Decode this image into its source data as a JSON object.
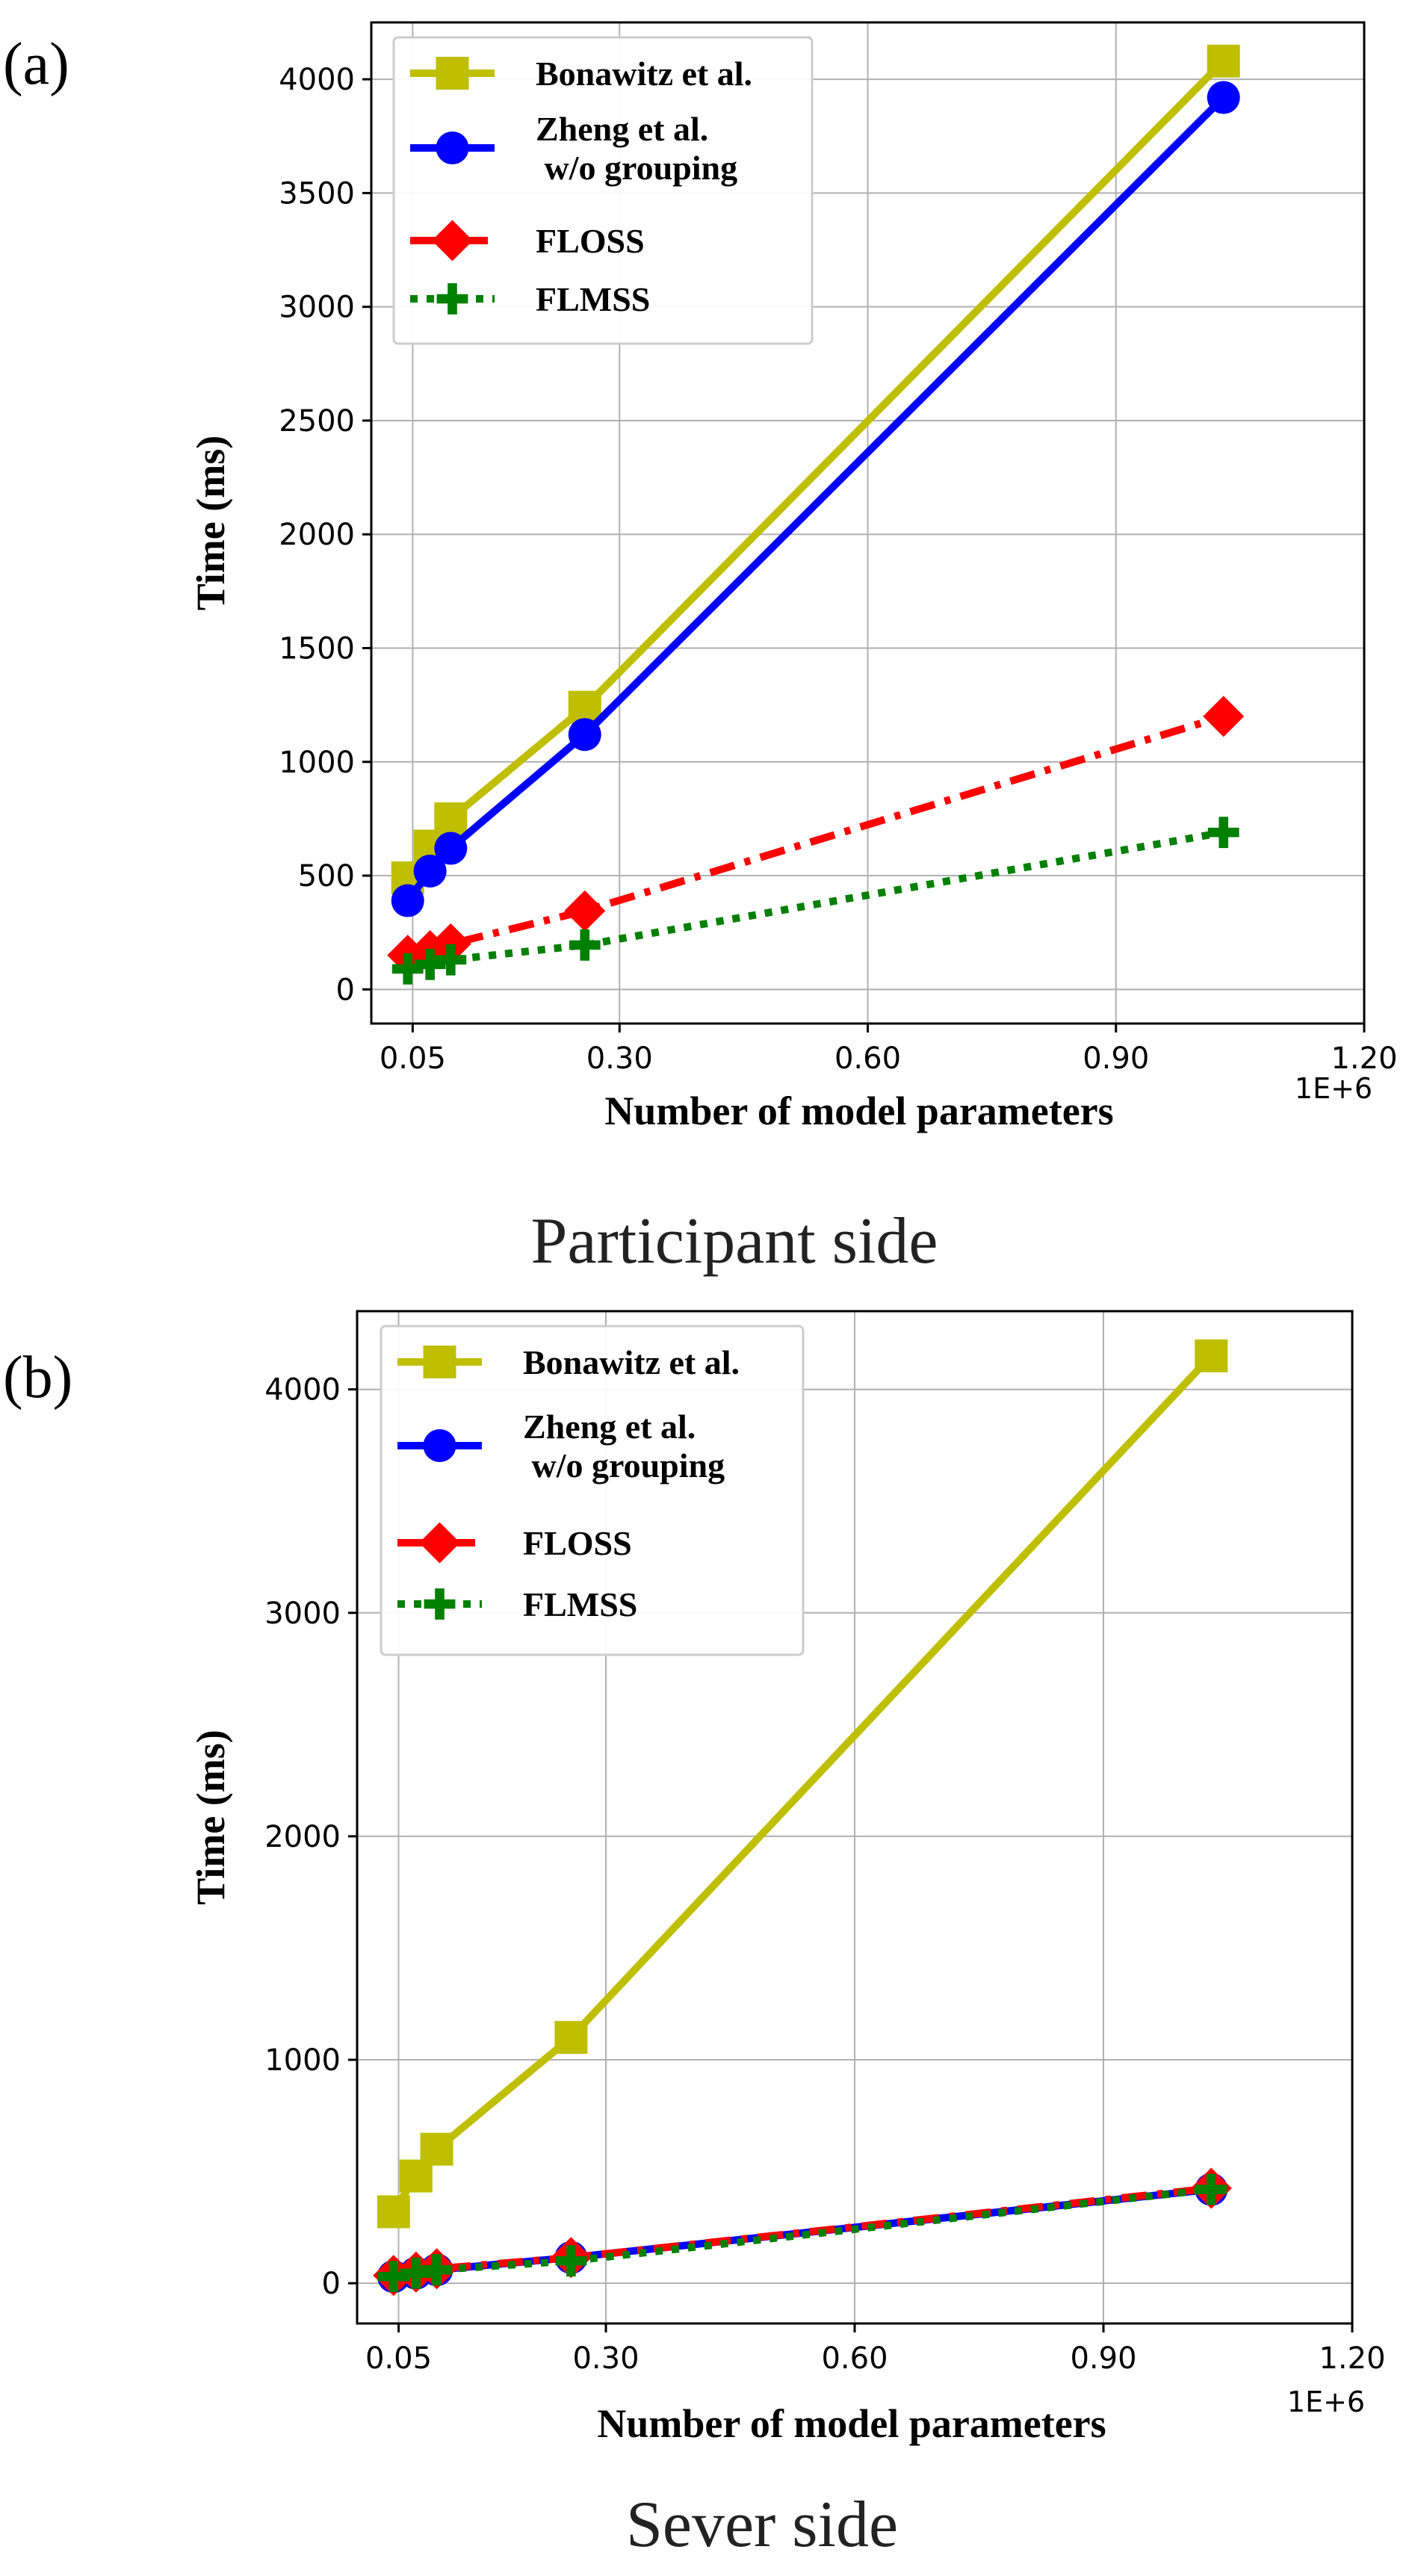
{
  "chart_data": [
    {
      "type": "line",
      "panel_label": "(a)",
      "caption": "Participant side",
      "xlabel": "Number of model parameters",
      "ylabel": "Time (ms)",
      "x_offset_label": "1E+6",
      "xlim": [
        0.0,
        1.2
      ],
      "ylim": [
        -150,
        4250
      ],
      "xticks": [
        0.05,
        0.3,
        0.6,
        0.9,
        1.2
      ],
      "xtick_labels": [
        "0.05",
        "0.30",
        "0.60",
        "0.90",
        "1.20"
      ],
      "yticks": [
        0,
        500,
        1000,
        1500,
        2000,
        2500,
        3000,
        3500,
        4000
      ],
      "ytick_labels": [
        "0",
        "500",
        "1000",
        "1500",
        "2000",
        "2500",
        "3000",
        "3500",
        "4000"
      ],
      "grid": true,
      "legend_position": "top-left",
      "x": [
        0.044,
        0.071,
        0.096,
        0.258,
        1.03
      ],
      "series": [
        {
          "name": "Bonawitz et al.",
          "color": "#bfbf00",
          "marker": "square",
          "line": "solid",
          "values": [
            490,
            630,
            750,
            1240,
            4080
          ]
        },
        {
          "name": "Zheng et al.\n w/o grouping",
          "color": "#0000ff",
          "marker": "circle",
          "line": "solid",
          "values": [
            390,
            520,
            620,
            1120,
            3920
          ]
        },
        {
          "name": "FLOSS",
          "color": "#ff0000",
          "marker": "diamond",
          "line": "dashdot",
          "values": [
            150,
            170,
            200,
            345,
            1200
          ]
        },
        {
          "name": "FLMSS",
          "color": "#008000",
          "marker": "plus",
          "line": "dotted",
          "values": [
            90,
            110,
            130,
            195,
            690
          ]
        }
      ]
    },
    {
      "type": "line",
      "panel_label": "(b)",
      "caption": "Sever side",
      "xlabel": "Number of model parameters",
      "ylabel": "Time (ms)",
      "x_offset_label": "1E+6",
      "xlim": [
        0.0,
        1.2
      ],
      "ylim": [
        -180,
        4350
      ],
      "xticks": [
        0.05,
        0.3,
        0.6,
        0.9,
        1.2
      ],
      "xtick_labels": [
        "0.05",
        "0.30",
        "0.60",
        "0.90",
        "1.20"
      ],
      "yticks": [
        0,
        1000,
        2000,
        3000,
        4000
      ],
      "ytick_labels": [
        "0",
        "1000",
        "2000",
        "3000",
        "4000"
      ],
      "grid": true,
      "legend_position": "top-left",
      "x": [
        0.044,
        0.071,
        0.096,
        0.258,
        1.03
      ],
      "series": [
        {
          "name": "Bonawitz et al.",
          "color": "#bfbf00",
          "marker": "square",
          "line": "solid",
          "values": [
            320,
            480,
            600,
            1100,
            4150
          ]
        },
        {
          "name": "Zheng et al.\n w/o grouping",
          "color": "#0000ff",
          "marker": "circle",
          "line": "solid",
          "values": [
            30,
            45,
            60,
            115,
            420
          ]
        },
        {
          "name": "FLOSS",
          "color": "#ff0000",
          "marker": "diamond",
          "line": "dashdot",
          "values": [
            35,
            50,
            65,
            115,
            425
          ]
        },
        {
          "name": "FLMSS",
          "color": "#008000",
          "marker": "plus",
          "line": "dotted",
          "values": [
            30,
            45,
            60,
            100,
            420
          ]
        }
      ]
    }
  ]
}
